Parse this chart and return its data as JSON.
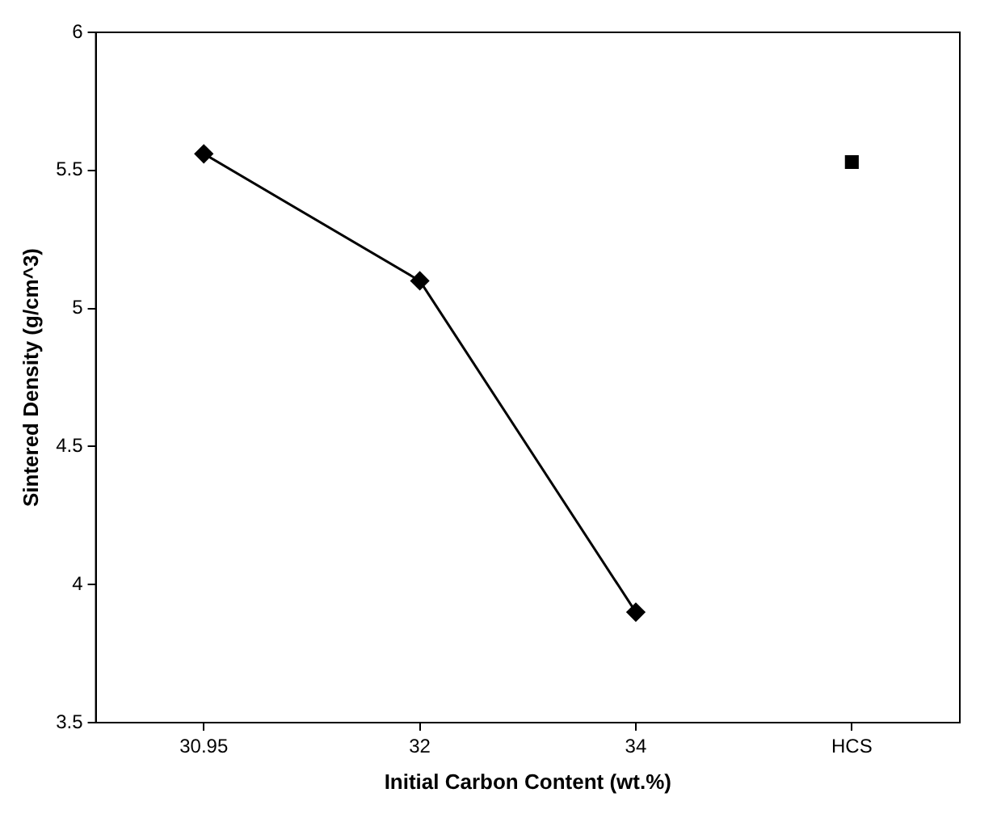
{
  "chart_data": {
    "type": "line",
    "xlabel": "Initial Carbon Content (wt.%)",
    "ylabel": "Sintered Density (g/cm^3)",
    "categories": [
      "30.95",
      "32",
      "34",
      "HCS"
    ],
    "series": [
      {
        "type": "line",
        "color": "#000000",
        "marker": "diamond",
        "values": [
          5.56,
          5.1,
          3.9,
          null
        ]
      },
      {
        "type": "scatter",
        "color": "#000000",
        "marker": "square",
        "values": [
          null,
          null,
          null,
          5.53
        ]
      }
    ],
    "ylim": [
      3.5,
      6
    ],
    "yticks": [
      3.5,
      4,
      4.5,
      5,
      5.5,
      6
    ],
    "grid": false,
    "legend": false
  }
}
